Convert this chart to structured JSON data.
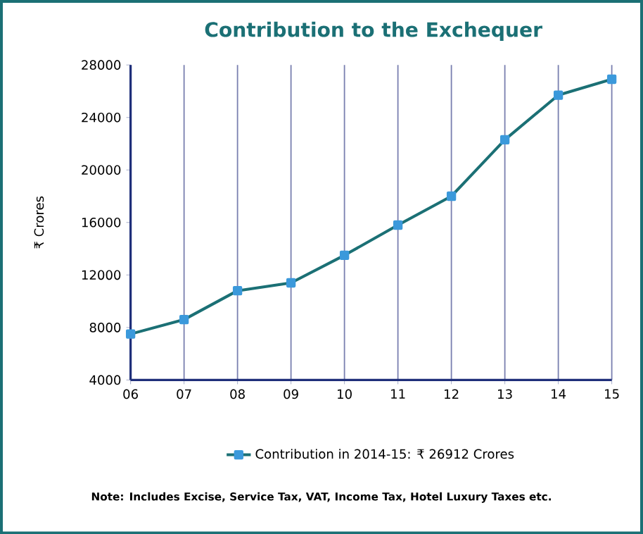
{
  "chart_data": {
    "type": "line",
    "title": "Contribution to the Exchequer",
    "ylabel": "₹ Crores",
    "categories": [
      "06",
      "07",
      "08",
      "09",
      "10",
      "11",
      "12",
      "13",
      "14",
      "15"
    ],
    "series": [
      {
        "name": "Contribution in 2014-15: ₹ 26912 Crores",
        "color": "#1b7075",
        "values": [
          7500,
          8600,
          10800,
          11400,
          13500,
          15800,
          18000,
          22300,
          25700,
          26912
        ]
      }
    ],
    "ylim": [
      4000,
      28000
    ],
    "yticks": [
      4000,
      8000,
      12000,
      16000,
      20000,
      24000,
      28000
    ],
    "grid": "x",
    "legend": "bottom",
    "marker": "square",
    "line_style": "solid",
    "annotations": [
      "Note: Includes Excise, Service Tax, VAT, Income Tax, Hotel Luxury Taxes etc."
    ]
  }
}
